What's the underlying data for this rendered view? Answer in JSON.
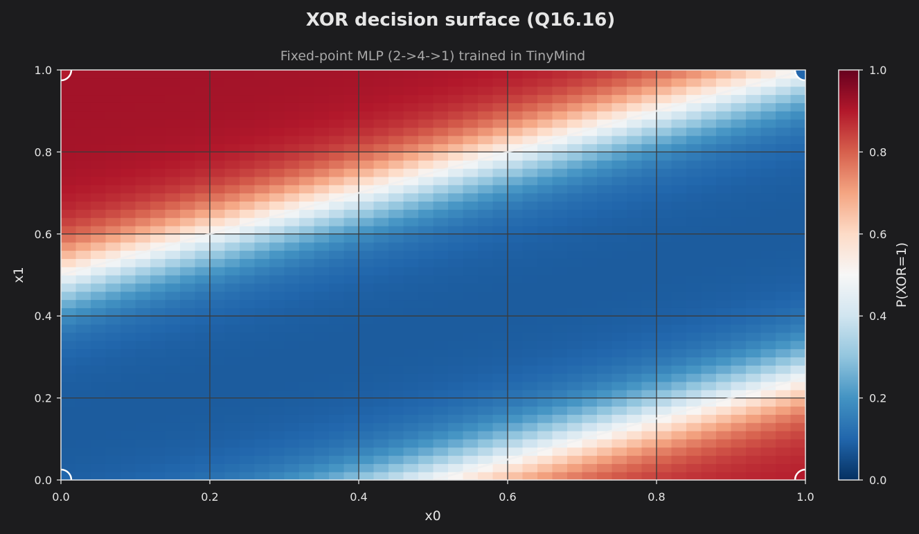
{
  "chart_data": {
    "type": "heatmap",
    "title": "XOR decision surface (Q16.16)",
    "subtitle": "Fixed-point MLP (2->4->1) trained in TinyMind",
    "xlabel": "x0",
    "ylabel": "x1",
    "xlim": [
      0,
      1
    ],
    "ylim": [
      0,
      1
    ],
    "xticks": [
      "0.0",
      "0.2",
      "0.4",
      "0.6",
      "0.8",
      "1.0"
    ],
    "yticks": [
      "0.0",
      "0.2",
      "0.4",
      "0.6",
      "0.8",
      "1.0"
    ],
    "grid": true,
    "grid_resolution": 50,
    "decision_boundary_level": 0.5,
    "colormap": "RdBu_r",
    "colorbar": {
      "label": "P(XOR=1)",
      "range": [
        0,
        1
      ],
      "ticks": [
        "0.0",
        "0.2",
        "0.4",
        "0.6",
        "0.8",
        "1.0"
      ]
    },
    "training_points": [
      {
        "x0": 0,
        "x1": 0,
        "target": 0
      },
      {
        "x0": 0,
        "x1": 1,
        "target": 1
      },
      {
        "x0": 1,
        "x1": 0,
        "target": 1
      },
      {
        "x0": 1,
        "x1": 1,
        "target": 0
      }
    ],
    "colors": {
      "background": "#1c1c1e",
      "text": "#e6e6e6",
      "subtitle": "#a8a8a8",
      "grid": "#3a3a3a",
      "boundary": "#f0f0f0"
    }
  }
}
